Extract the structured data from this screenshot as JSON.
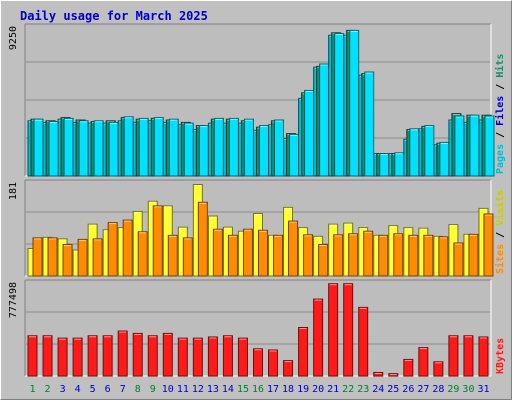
{
  "title": "Daily usage for March 2025",
  "colors": {
    "background": "#c0c0c0",
    "plot_bg": "#bdbdbd",
    "hits": "#00e0ff",
    "files": "#1e8a6a",
    "pages": "#00bcd4",
    "visits": "#ffff33",
    "sites": "#ff8c00",
    "kbytes": "#ff1a1a",
    "title": "#0000cc",
    "weekend_label": "#00802b",
    "weekday_label": "#0000cc"
  },
  "chart_data": [
    {
      "type": "bar",
      "name": "hits-files-pages",
      "ymax_label": "9250",
      "ylim": [
        0,
        9250
      ],
      "legend": [
        "Pages",
        "Files",
        "Hits"
      ],
      "categories": [
        "1",
        "2",
        "3",
        "4",
        "5",
        "6",
        "7",
        "8",
        "9",
        "10",
        "11",
        "12",
        "13",
        "14",
        "15",
        "16",
        "17",
        "18",
        "19",
        "20",
        "21",
        "22",
        "23",
        "24",
        "25",
        "26",
        "27",
        "28",
        "29",
        "30",
        "31"
      ],
      "series": [
        {
          "name": "Pages",
          "values": [
            3450,
            3350,
            3550,
            3350,
            3300,
            3300,
            3450,
            3350,
            3450,
            3350,
            3200,
            2900,
            3300,
            3300,
            3300,
            2850,
            3200,
            2350,
            4850,
            6800,
            8800,
            8800,
            6300,
            1400,
            1400,
            2300,
            2950,
            1950,
            3500,
            3350,
            3500
          ]
        },
        {
          "name": "Files",
          "values": [
            3550,
            3450,
            3650,
            3500,
            3400,
            3450,
            3650,
            3550,
            3600,
            3500,
            3350,
            3150,
            3550,
            3550,
            3450,
            3050,
            3450,
            2650,
            5200,
            6850,
            8950,
            9100,
            6400,
            1400,
            1400,
            2900,
            3100,
            2050,
            3900,
            3800,
            3800
          ]
        },
        {
          "name": "Hits",
          "values": [
            3550,
            3400,
            3600,
            3450,
            3450,
            3350,
            3700,
            3600,
            3650,
            3550,
            3300,
            3150,
            3600,
            3600,
            3550,
            3150,
            3500,
            2600,
            5350,
            7000,
            8900,
            9100,
            6500,
            1400,
            1450,
            2950,
            3150,
            2100,
            3750,
            3800,
            3750
          ]
        }
      ]
    },
    {
      "type": "bar",
      "name": "visits-sites",
      "ymax_label": "181",
      "ylim": [
        0,
        181
      ],
      "legend": [
        "Sites",
        "Visits"
      ],
      "categories": [
        "1",
        "2",
        "3",
        "4",
        "5",
        "6",
        "7",
        "8",
        "9",
        "10",
        "11",
        "12",
        "13",
        "14",
        "15",
        "16",
        "17",
        "18",
        "19",
        "20",
        "21",
        "22",
        "23",
        "24",
        "25",
        "26",
        "27",
        "28",
        "29",
        "30",
        "31"
      ],
      "series": [
        {
          "name": "Visits",
          "values": [
            54,
            76,
            73,
            51,
            102,
            91,
            95,
            127,
            147,
            138,
            96,
            180,
            118,
            96,
            88,
            123,
            80,
            135,
            95,
            78,
            102,
            104,
            95,
            80,
            99,
            95,
            94,
            78,
            101,
            82,
            133
          ]
        },
        {
          "name": "Sites",
          "values": [
            75,
            75,
            62,
            72,
            73,
            105,
            110,
            87,
            138,
            80,
            75,
            145,
            92,
            80,
            92,
            90,
            80,
            108,
            81,
            62,
            81,
            83,
            88,
            80,
            83,
            80,
            80,
            77,
            65,
            82,
            122
          ]
        }
      ]
    },
    {
      "type": "bar",
      "name": "kbytes",
      "ymax_label": "777498",
      "ylim": [
        0,
        777498
      ],
      "legend": [
        "KBytes"
      ],
      "categories": [
        "1",
        "2",
        "3",
        "4",
        "5",
        "6",
        "7",
        "8",
        "9",
        "10",
        "11",
        "12",
        "13",
        "14",
        "15",
        "16",
        "17",
        "18",
        "19",
        "20",
        "21",
        "22",
        "23",
        "24",
        "25",
        "26",
        "27",
        "28",
        "29",
        "30",
        "31"
      ],
      "series": [
        {
          "name": "KBytes",
          "values": [
            340000,
            340000,
            320000,
            320000,
            340000,
            340000,
            380000,
            360000,
            340000,
            360000,
            320000,
            320000,
            330000,
            340000,
            320000,
            230000,
            220000,
            130000,
            410000,
            650000,
            780000,
            780000,
            580000,
            30000,
            20000,
            140000,
            240000,
            120000,
            340000,
            340000,
            330000
          ]
        }
      ]
    }
  ],
  "x_labels": [
    "1",
    "2",
    "3",
    "4",
    "5",
    "6",
    "7",
    "8",
    "9",
    "10",
    "11",
    "12",
    "13",
    "14",
    "15",
    "16",
    "17",
    "18",
    "19",
    "20",
    "21",
    "22",
    "23",
    "24",
    "25",
    "26",
    "27",
    "28",
    "29",
    "30",
    "31"
  ],
  "weekend_days": [
    1,
    2,
    8,
    9,
    15,
    16,
    22,
    23,
    29,
    30
  ]
}
